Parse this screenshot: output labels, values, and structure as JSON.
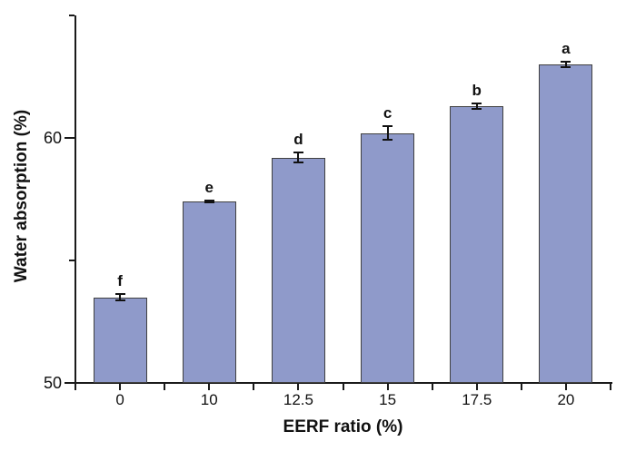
{
  "figure": {
    "x_axis_title": "EERF ratio (%)",
    "y_axis_title": "Water absorption (%)"
  },
  "chart_data": {
    "type": "bar",
    "title": "",
    "xlabel": "EERF ratio (%)",
    "ylabel": "Water absorption (%)",
    "categories": [
      "0",
      "10",
      "12.5",
      "15",
      "17.5",
      "20"
    ],
    "values": [
      53.5,
      57.4,
      59.2,
      60.2,
      61.3,
      63.0
    ],
    "errors": [
      0.12,
      0.03,
      0.19,
      0.28,
      0.11,
      0.11
    ],
    "bar_letter_labels": [
      "f",
      "e",
      "d",
      "c",
      "b",
      "a"
    ],
    "ylim": [
      50,
      65
    ],
    "y_major_ticks": [
      50,
      60
    ],
    "y_minor_ticks": [
      55,
      65
    ],
    "grid": false,
    "legend": false,
    "bar_color": "#8f9aca",
    "bar_border_color": "#404040",
    "axis_color": "#1a1a1a",
    "error_bar_color": "#111111",
    "background_color": "#ffffff"
  }
}
